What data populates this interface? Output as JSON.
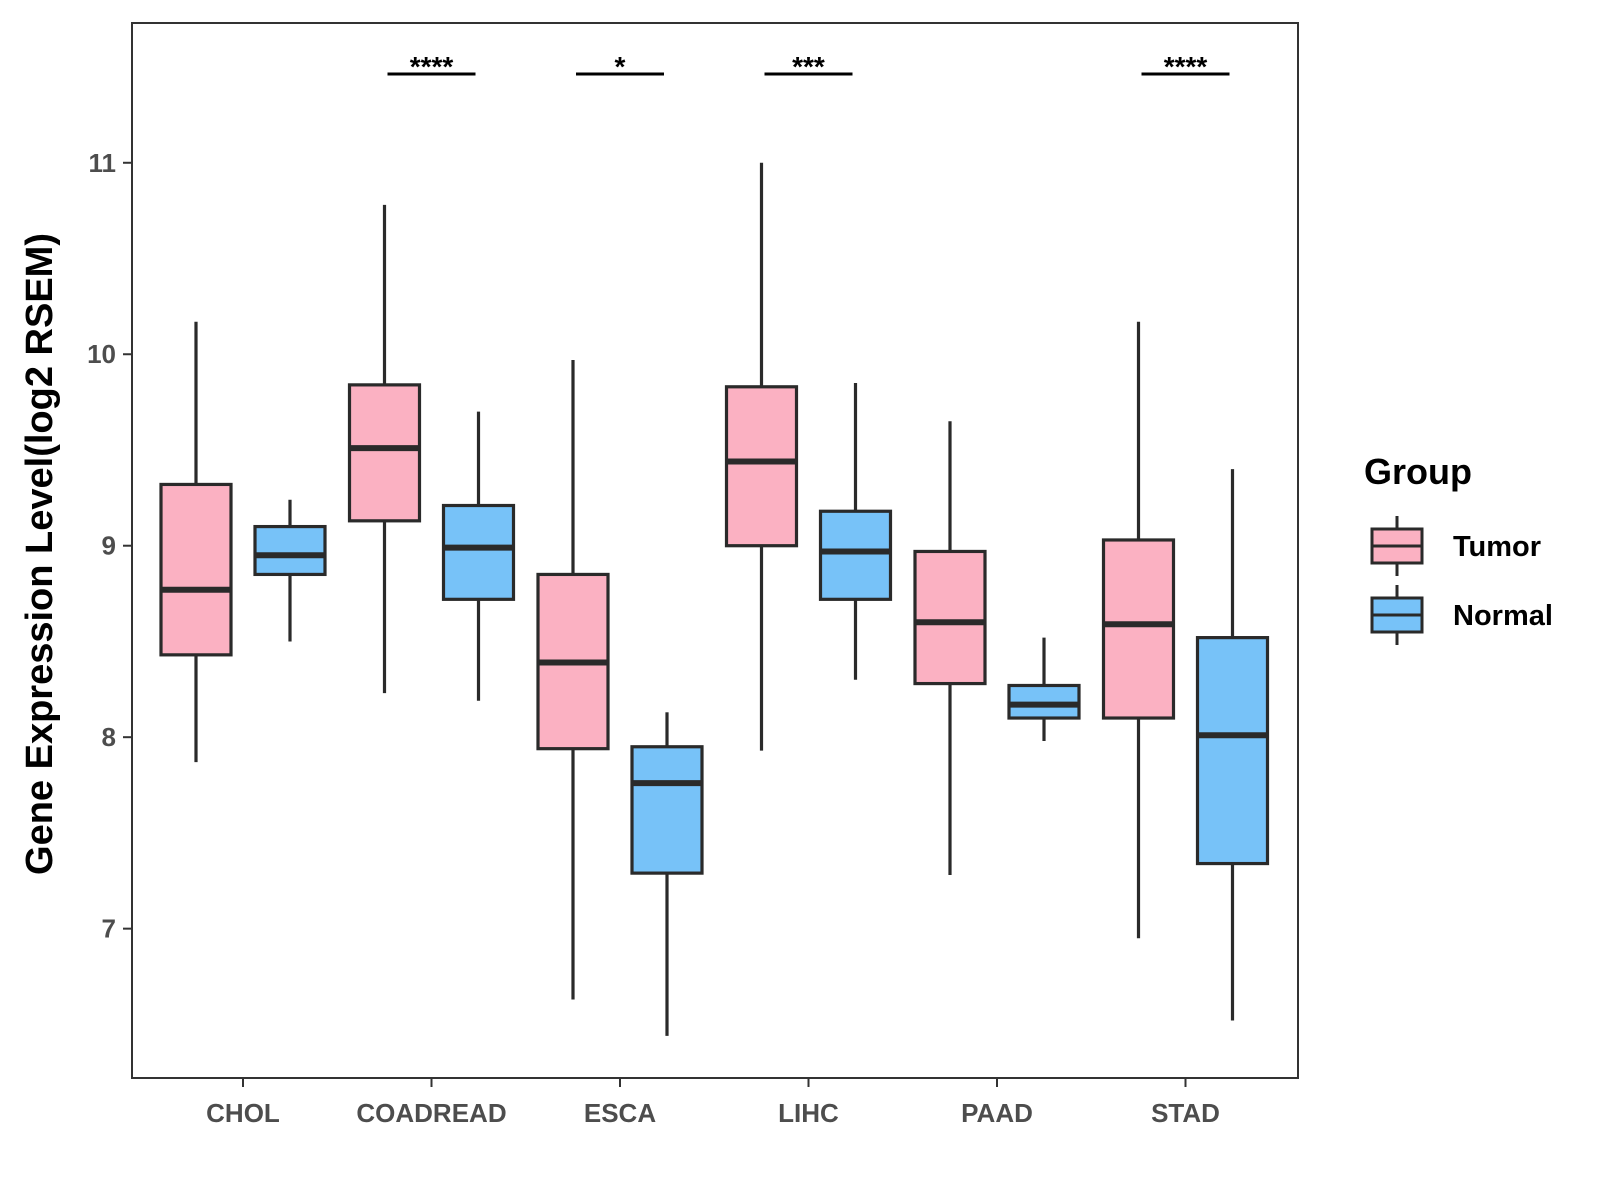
{
  "chart_data": {
    "type": "boxplot",
    "title": "",
    "xlabel": "",
    "ylabel": "Gene Expression Level(log2 RSEM)",
    "ylim": [
      6.22,
      11.73
    ],
    "yticks": [
      7,
      8,
      9,
      10,
      11
    ],
    "categories": [
      "CHOL",
      "COADREAD",
      "ESCA",
      "LIHC",
      "PAAD",
      "STAD"
    ],
    "legend": {
      "title": "Group",
      "position": "right"
    },
    "colors": {
      "Tumor": "#FBB1C2",
      "Normal": "#77C2F8",
      "stroke": "#2a2a2a"
    },
    "series": [
      {
        "name": "Tumor",
        "boxes": [
          {
            "min": 7.87,
            "q1": 8.43,
            "median": 8.77,
            "q3": 9.32,
            "max": 10.17
          },
          {
            "min": 8.23,
            "q1": 9.13,
            "median": 9.51,
            "q3": 9.84,
            "max": 10.78
          },
          {
            "min": 6.63,
            "q1": 7.94,
            "median": 8.39,
            "q3": 8.85,
            "max": 9.97
          },
          {
            "min": 7.93,
            "q1": 9.0,
            "median": 9.44,
            "q3": 9.83,
            "max": 11.0
          },
          {
            "min": 7.28,
            "q1": 8.28,
            "median": 8.6,
            "q3": 8.97,
            "max": 9.65
          },
          {
            "min": 6.95,
            "q1": 8.1,
            "median": 8.59,
            "q3": 9.03,
            "max": 10.17
          }
        ]
      },
      {
        "name": "Normal",
        "boxes": [
          {
            "min": 8.5,
            "q1": 8.85,
            "median": 8.95,
            "q3": 9.1,
            "max": 9.24
          },
          {
            "min": 8.19,
            "q1": 8.72,
            "median": 8.99,
            "q3": 9.21,
            "max": 9.7
          },
          {
            "min": 6.44,
            "q1": 7.29,
            "median": 7.76,
            "q3": 7.95,
            "max": 8.13
          },
          {
            "min": 8.3,
            "q1": 8.72,
            "median": 8.97,
            "q3": 9.18,
            "max": 9.85
          },
          {
            "min": 7.98,
            "q1": 8.1,
            "median": 8.17,
            "q3": 8.27,
            "max": 8.52
          },
          {
            "min": 6.52,
            "q1": 7.34,
            "median": 8.01,
            "q3": 8.52,
            "max": 9.4
          }
        ]
      }
    ],
    "annotations": [
      {
        "category": "COADREAD",
        "label": "****"
      },
      {
        "category": "ESCA",
        "label": "*"
      },
      {
        "category": "LIHC",
        "label": "***"
      },
      {
        "category": "STAD",
        "label": "****"
      }
    ]
  }
}
